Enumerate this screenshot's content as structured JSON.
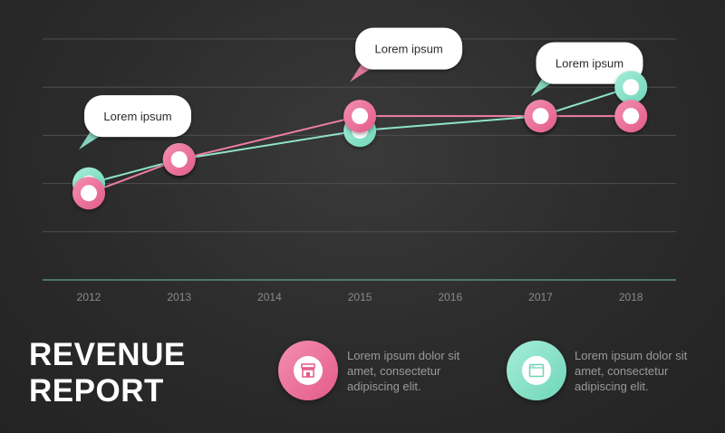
{
  "chart_data": {
    "type": "line",
    "x": [
      "2012",
      "2013",
      "2014",
      "2015",
      "2016",
      "2017",
      "2018"
    ],
    "ylim": [
      0,
      5
    ],
    "grid": true,
    "series": [
      {
        "color": "#ef7fa4",
        "points": [
          [
            "2012",
            1.8
          ],
          [
            "2013",
            2.5
          ],
          [
            "2015",
            3.4
          ],
          [
            "2017",
            3.4
          ],
          [
            "2018",
            3.4
          ]
        ]
      },
      {
        "color": "#8fe3cc",
        "points": [
          [
            "2012",
            2.0
          ],
          [
            "2013",
            2.5
          ],
          [
            "2015",
            3.1
          ],
          [
            "2017",
            3.4
          ],
          [
            "2018",
            4.0
          ]
        ]
      }
    ],
    "annotations": [
      {
        "text": "Lorem ipsum",
        "x": "2012",
        "y": 3.4,
        "color": "#8fe3cc"
      },
      {
        "text": "Lorem ipsum",
        "x": "2015",
        "y": 4.8,
        "color": "#ef7fa4"
      },
      {
        "text": "Lorem ipsum",
        "x": "2017",
        "y": 4.5,
        "color": "#8fe3cc"
      }
    ]
  },
  "title_line1": "REVENUE",
  "title_line2": "REPORT",
  "legend": [
    {
      "icon": "store-icon",
      "text": "Lorem ipsum dolor sit amet, consectetur adipiscing elit.",
      "color": "#ef7fa4"
    },
    {
      "icon": "browser-window-icon",
      "text": "Lorem ipsum dolor sit amet, consectetur adipiscing elit.",
      "color": "#8fe3cc"
    }
  ]
}
